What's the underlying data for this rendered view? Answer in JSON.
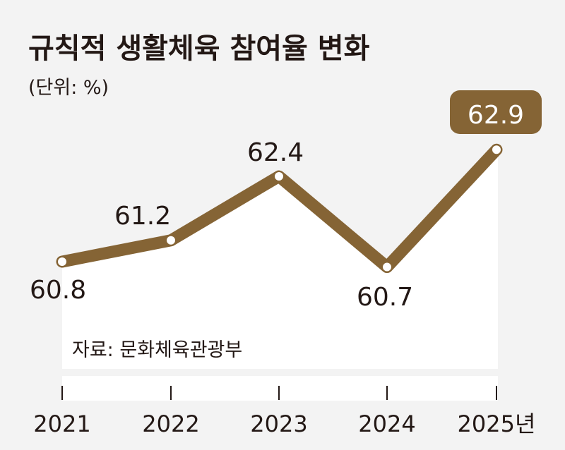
{
  "chart_data": {
    "type": "line",
    "title": "규칙적 생활체육 참여율 변화",
    "unit_label": "(단위: %)",
    "categories": [
      "2021",
      "2022",
      "2023",
      "2024",
      "2025년"
    ],
    "values": [
      60.8,
      61.2,
      62.4,
      60.7,
      62.9
    ],
    "value_labels": [
      "60.8",
      "61.2",
      "62.4",
      "60.7",
      "62.9"
    ],
    "highlight_index": 4,
    "source": "자료: 문화체육관광부",
    "grid": false,
    "colors": {
      "line": "#856435",
      "background": "#f3f3f3",
      "area": "#ffffff",
      "text": "#231815",
      "highlight_text": "#ffffff"
    }
  }
}
